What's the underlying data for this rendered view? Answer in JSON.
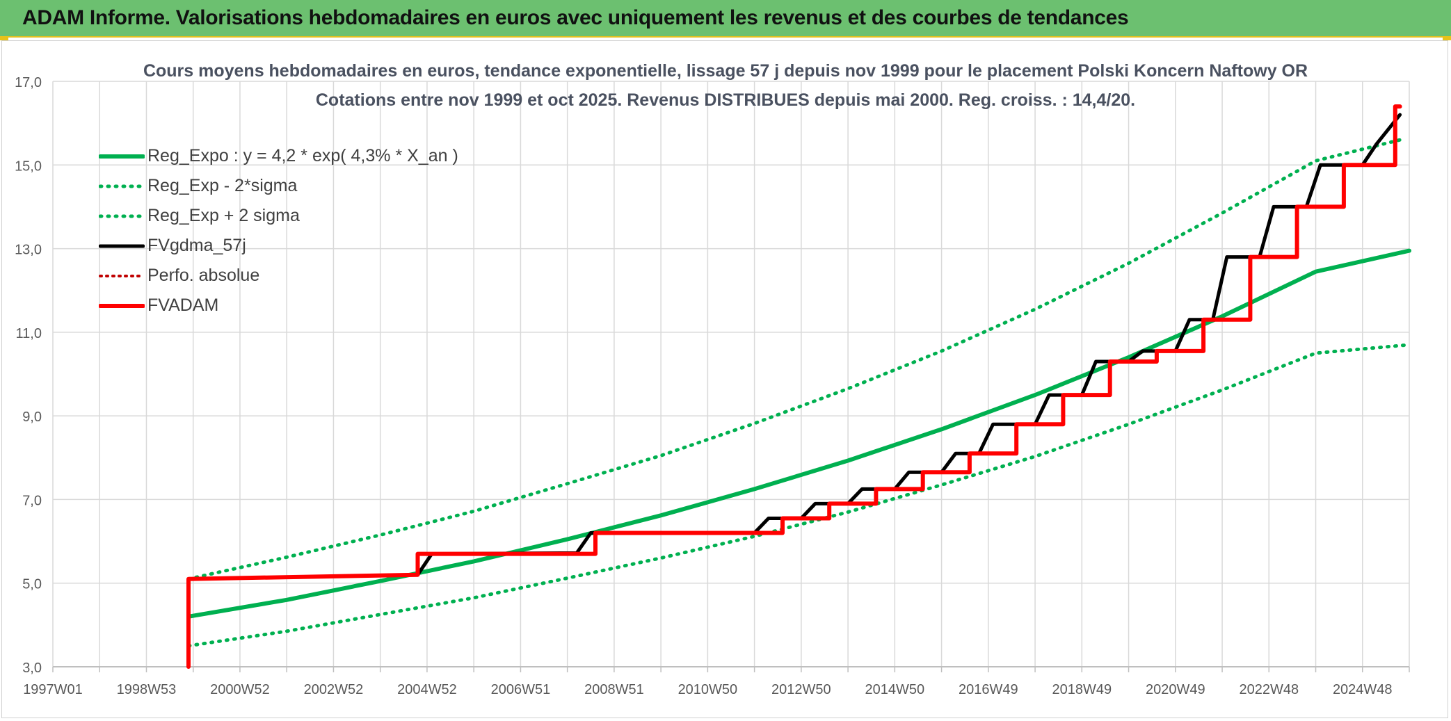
{
  "banner": {
    "title": "ADAM Informe. Valorisations hebdomadaires en euros avec uniquement les revenus et des courbes de tendances"
  },
  "colors": {
    "banner_bg": "#6cc070",
    "trend": "#00b050",
    "fvgdma": "#000000",
    "fvadam": "#ff0000",
    "perfo": "#c00000"
  },
  "chart_data": {
    "type": "line",
    "title": "Cours moyens hebdomadaires en euros, tendance exponentielle, lissage 57 j depuis nov 1999 pour le placement Polski Koncern Naftowy OR",
    "subtitle": "Cotations entre nov 1999 et oct 2025. Revenus DISTRIBUES depuis mai 2000. Reg. croiss. : 14,4/20.",
    "xlabel": "",
    "ylabel": "",
    "x_ticks": [
      "1997W01",
      "1998W53",
      "2000W52",
      "2002W52",
      "2004W52",
      "2006W51",
      "2008W51",
      "2010W50",
      "2012W50",
      "2014W50",
      "2016W49",
      "2018W49",
      "2020W49",
      "2022W48",
      "2024W48"
    ],
    "xlim": [
      1997.0,
      2026.0
    ],
    "ylim": [
      3.0,
      17.0
    ],
    "y_ticks": [
      "3,0",
      "5,0",
      "7,0",
      "9,0",
      "11,0",
      "13,0",
      "15,0",
      "17,0"
    ],
    "grid": true,
    "legend_position": "top-left",
    "series": [
      {
        "name": "Reg_Expo : y = 4,2 * exp( 4,3% *  X_an )",
        "style": "solid",
        "color": "#00b050",
        "x": [
          1999.9,
          2002.0,
          2004.0,
          2006.0,
          2008.0,
          2010.0,
          2012.0,
          2014.0,
          2016.0,
          2018.0,
          2020.0,
          2022.0,
          2024.0,
          2026.0
        ],
        "y": [
          4.2,
          4.6,
          5.05,
          5.52,
          6.05,
          6.62,
          7.25,
          7.93,
          8.68,
          9.5,
          10.4,
          11.38,
          12.45,
          12.95
        ]
      },
      {
        "name": "Reg_Exp - 2*sigma",
        "style": "dotted",
        "color": "#00b050",
        "x": [
          1999.9,
          2002.0,
          2004.0,
          2006.0,
          2008.0,
          2010.0,
          2012.0,
          2014.0,
          2016.0,
          2018.0,
          2020.0,
          2022.0,
          2024.0,
          2026.0
        ],
        "y": [
          3.5,
          3.85,
          4.25,
          4.65,
          5.12,
          5.6,
          6.12,
          6.7,
          7.35,
          8.03,
          8.8,
          9.62,
          10.5,
          10.7
        ]
      },
      {
        "name": "Reg_Exp + 2 sigma",
        "style": "dotted",
        "color": "#00b050",
        "x": [
          1999.9,
          2002.0,
          2004.0,
          2006.0,
          2008.0,
          2010.0,
          2012.0,
          2014.0,
          2016.0,
          2018.0,
          2020.0,
          2022.0,
          2024.0,
          2025.8
        ],
        "y": [
          5.1,
          5.62,
          6.15,
          6.72,
          7.38,
          8.05,
          8.82,
          9.65,
          10.55,
          11.55,
          12.65,
          13.85,
          15.1,
          15.6
        ]
      },
      {
        "name": "FVgdma_57j",
        "style": "solid",
        "color": "#000000",
        "x": [
          1999.9,
          2004.8,
          2005.1,
          2008.2,
          2008.5,
          2012.0,
          2012.3,
          2013.0,
          2013.3,
          2014.0,
          2014.3,
          2015.0,
          2015.3,
          2016.0,
          2016.3,
          2016.8,
          2017.1,
          2018.0,
          2018.3,
          2019.0,
          2019.3,
          2020.0,
          2020.3,
          2021.0,
          2021.3,
          2021.8,
          2022.1,
          2022.8,
          2023.1,
          2023.8,
          2024.1,
          2025.0,
          2025.3,
          2025.8
        ],
        "y": [
          5.1,
          5.2,
          5.7,
          5.72,
          6.2,
          6.2,
          6.55,
          6.55,
          6.9,
          6.9,
          7.25,
          7.25,
          7.65,
          7.65,
          8.1,
          8.1,
          8.8,
          8.8,
          9.5,
          9.5,
          10.3,
          10.3,
          10.55,
          10.55,
          11.3,
          11.3,
          12.8,
          12.8,
          14.0,
          14.0,
          15.0,
          15.0,
          15.5,
          16.2
        ]
      },
      {
        "name": "Perfo. absolue",
        "style": "dotted",
        "color": "#c00000",
        "x": [],
        "y": []
      },
      {
        "name": "FVADAM",
        "style": "solid",
        "color": "#ff0000",
        "x": [
          1999.9,
          1999.9,
          2004.8,
          2004.8,
          2008.6,
          2008.6,
          2012.6,
          2012.6,
          2013.6,
          2013.6,
          2014.6,
          2014.6,
          2015.6,
          2015.6,
          2016.6,
          2016.6,
          2017.6,
          2017.6,
          2018.6,
          2018.6,
          2019.6,
          2019.6,
          2020.6,
          2020.6,
          2021.6,
          2021.6,
          2022.6,
          2022.6,
          2023.6,
          2023.6,
          2024.6,
          2024.6,
          2025.7,
          2025.7,
          2025.8
        ],
        "y": [
          3.0,
          5.1,
          5.2,
          5.7,
          5.7,
          6.2,
          6.2,
          6.55,
          6.55,
          6.9,
          6.9,
          7.25,
          7.25,
          7.65,
          7.65,
          8.1,
          8.1,
          8.8,
          8.8,
          9.5,
          9.5,
          10.3,
          10.3,
          10.55,
          10.55,
          11.3,
          11.3,
          12.8,
          12.8,
          14.0,
          14.0,
          15.0,
          15.0,
          16.4,
          16.4
        ]
      }
    ]
  }
}
